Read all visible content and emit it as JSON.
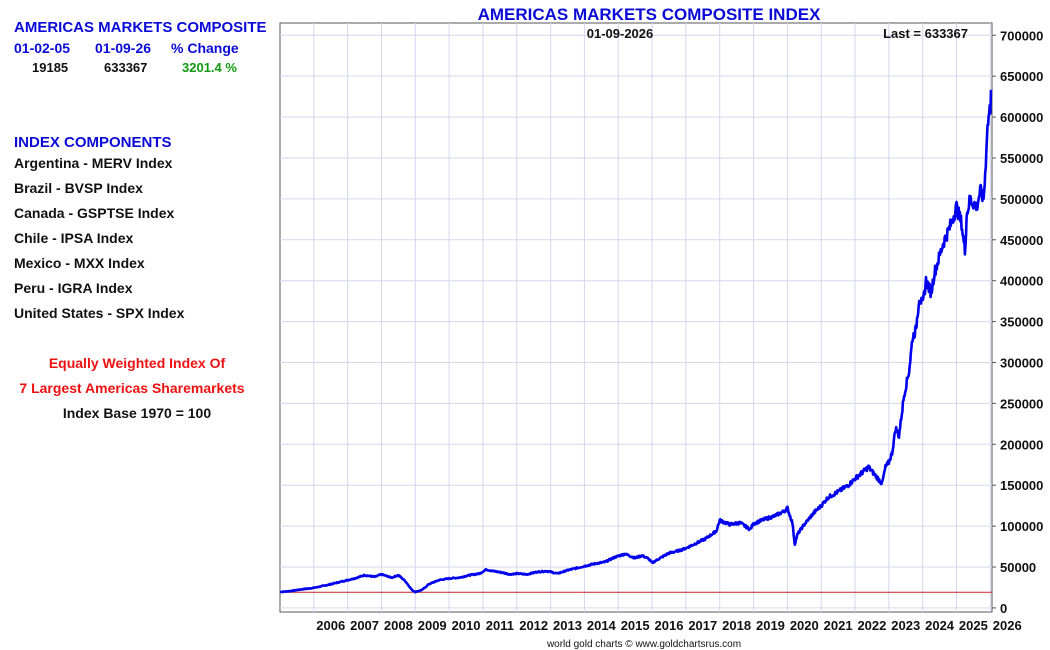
{
  "left_panel": {
    "header_title": "AMERICAS MARKETS COMPOSITE",
    "date_start": "01-02-05",
    "date_end": "01-09-26",
    "pct_change_label": "% Change",
    "value_start": "19185",
    "value_end": "633367",
    "pct_change_value": "3201.4 %",
    "components_title": "INDEX COMPONENTS",
    "components": [
      "Argentina - MERV Index",
      "Brazil - BVSP Index",
      "Canada - GSPTSE Index",
      "Chile - IPSA Index",
      "Mexico - MXX Index",
      "Peru - IGRA Index",
      "United States - SPX Index"
    ],
    "note_line1": "Equally Weighted Index Of",
    "note_line2": "7 Largest Americas Sharemarkets",
    "note_line3": "Index Base 1970 = 100"
  },
  "chart_data": {
    "type": "line",
    "title": "AMERICAS MARKETS COMPOSITE INDEX",
    "date_label": "01-09-2026",
    "last_label": "Last = 633367",
    "footer": "world gold charts © www.goldchartsrus.com",
    "xlim": [
      2005.0,
      2026.05
    ],
    "ylim": [
      -5000,
      715000
    ],
    "x_ticks": [
      "2006",
      "2007",
      "2008",
      "2009",
      "2010",
      "2011",
      "2012",
      "2013",
      "2014",
      "2015",
      "2016",
      "2017",
      "2018",
      "2019",
      "2020",
      "2021",
      "2022",
      "2023",
      "2024",
      "2025",
      "2026"
    ],
    "y_ticks": [
      0,
      50000,
      100000,
      150000,
      200000,
      250000,
      300000,
      350000,
      400000,
      450000,
      500000,
      550000,
      600000,
      650000,
      700000
    ],
    "y_tick_labels": [
      "0",
      "50000",
      "100000",
      "150000",
      "200000",
      "250000",
      "300000",
      "350000",
      "400000",
      "450000",
      "500000",
      "550000",
      "600000",
      "650000",
      "700000"
    ],
    "reference_line": 19185,
    "grid": true,
    "colors": {
      "line": "#0000ee",
      "reference": "#cc2222",
      "title": "#0a0ad8",
      "grid": "#d6d6ee"
    },
    "series": [
      {
        "x": [
          2005.0,
          2005.3,
          2005.6,
          2006.0,
          2006.4,
          2006.8,
          2007.2,
          2007.5,
          2007.8,
          2008.0,
          2008.3,
          2008.5,
          2008.7,
          2008.9,
          2009.0,
          2009.2,
          2009.4,
          2009.7,
          2010.0,
          2010.3,
          2010.6,
          2010.9,
          2011.1,
          2011.3,
          2011.6,
          2011.8,
          2012.0,
          2012.3,
          2012.6,
          2012.9,
          2013.2,
          2013.5,
          2013.8,
          2014.0,
          2014.3,
          2014.6,
          2014.9,
          2015.2,
          2015.5,
          2015.7,
          2015.9,
          2016.0,
          2016.2,
          2016.5,
          2016.8,
          2017.0,
          2017.3,
          2017.6,
          2017.9,
          2018.0,
          2018.3,
          2018.6,
          2018.9,
          2019.0,
          2019.3,
          2019.6,
          2019.9,
          2020.0,
          2020.15,
          2020.22,
          2020.3,
          2020.5,
          2020.8,
          2021.0,
          2021.2,
          2021.5,
          2021.8,
          2022.0,
          2022.2,
          2022.4,
          2022.6,
          2022.8,
          2022.9,
          2023.0,
          2023.1,
          2023.2,
          2023.3,
          2023.45,
          2023.6,
          2023.7,
          2023.8,
          2023.9,
          2024.0,
          2024.1,
          2024.25,
          2024.35,
          2024.5,
          2024.6,
          2024.8,
          2025.0,
          2025.15,
          2025.25,
          2025.3,
          2025.4,
          2025.5,
          2025.6,
          2025.7,
          2025.8,
          2025.85,
          2025.9,
          2025.95,
          2026.0,
          2026.02
        ],
        "y": [
          19500,
          20500,
          22500,
          24500,
          28000,
          32000,
          36000,
          40000,
          38000,
          41000,
          37000,
          40000,
          33000,
          22000,
          19500,
          22000,
          29000,
          34000,
          36000,
          37000,
          40000,
          42000,
          47000,
          45000,
          43000,
          41000,
          42000,
          41000,
          44000,
          45000,
          42000,
          46000,
          49000,
          51000,
          54000,
          56000,
          62000,
          66000,
          61000,
          64000,
          60000,
          55000,
          60000,
          67000,
          70000,
          73000,
          79000,
          85000,
          94000,
          107000,
          102000,
          104000,
          96000,
          103000,
          108000,
          112000,
          118000,
          122000,
          104000,
          78000,
          90000,
          102000,
          117000,
          125000,
          135000,
          142000,
          150000,
          158000,
          165000,
          172000,
          162000,
          152000,
          172000,
          178000,
          190000,
          220000,
          210000,
          260000,
          290000,
          330000,
          340000,
          380000,
          370000,
          400000,
          385000,
          410000,
          430000,
          445000,
          465000,
          490000,
          470000,
          435000,
          480000,
          500000,
          495000,
          490000,
          510000,
          500000,
          530000,
          580000,
          600000,
          612000,
          633367
        ]
      }
    ]
  }
}
